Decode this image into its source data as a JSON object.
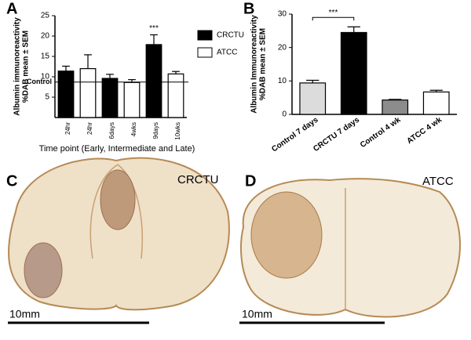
{
  "panel_labels": [
    "A",
    "B",
    "C",
    "D"
  ],
  "images": [
    {
      "label": "CRCTU",
      "scale": "10mm"
    },
    {
      "label": "ATCC",
      "scale": "10mm"
    }
  ],
  "chart_data": [
    {
      "type": "bar",
      "ylabel": [
        "Albumin immunoreactivity",
        "%DAB mean ± SEM"
      ],
      "xlabel": "Time point (Early, Intermediate and Late)",
      "categories": [
        "24hr",
        "24hr",
        "6days",
        "4wks",
        "9days",
        "10wks"
      ],
      "series": [
        {
          "name": "CRCTU",
          "color": "#000000",
          "values": [
            11.4,
            null,
            9.6,
            null,
            17.9,
            null
          ],
          "errors": [
            1.2,
            null,
            1.0,
            null,
            2.4,
            null
          ]
        },
        {
          "name": "ATCC",
          "color": "#ffffff",
          "values": [
            null,
            12.0,
            null,
            8.6,
            null,
            10.7
          ],
          "errors": [
            null,
            3.4,
            null,
            0.7,
            null,
            0.6
          ]
        }
      ],
      "reference_line": {
        "label": "Control",
        "value": 8.7
      },
      "annotations": [
        {
          "text": "***",
          "category": 4
        }
      ],
      "ylim": [
        0,
        25
      ],
      "yticks": [
        5,
        10,
        15,
        20,
        25
      ],
      "legend": "right"
    },
    {
      "type": "bar",
      "ylabel": [
        "Albumin Immunoreactivity",
        "%DAB mean ± SEM"
      ],
      "categories": [
        "Control 7 days",
        "CRCTU 7 days",
        "Control 4 wk",
        "ATCC 4 wk"
      ],
      "values": [
        9.4,
        24.5,
        4.3,
        6.7
      ],
      "errors": [
        0.8,
        1.7,
        0.2,
        0.5
      ],
      "colors": [
        "#dcdcdc",
        "#000000",
        "#8c8c8c",
        "#ffffff"
      ],
      "annotations": [
        {
          "text": "***",
          "from": 0,
          "to": 1
        }
      ],
      "ylim": [
        0,
        30
      ],
      "yticks": [
        0,
        10,
        20,
        30
      ]
    }
  ]
}
